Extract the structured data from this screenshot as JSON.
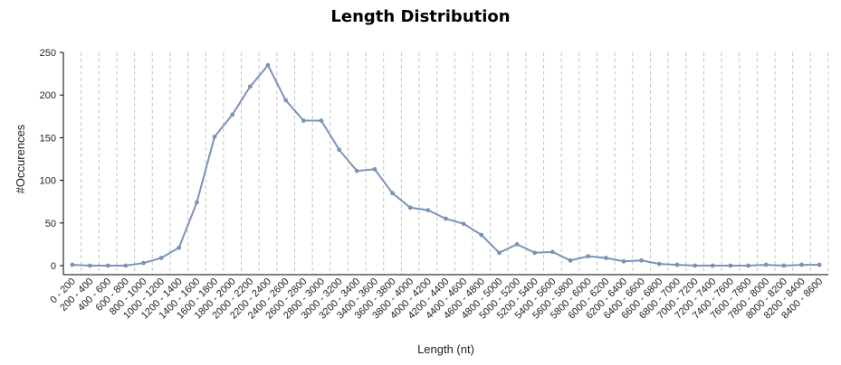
{
  "chart_data": {
    "type": "line",
    "title": "Length Distribution",
    "xlabel": "Length (nt)",
    "ylabel": "#Occurences",
    "ylim": [
      0,
      250
    ],
    "yticks": [
      "0",
      "50",
      "100",
      "150",
      "200",
      "250"
    ],
    "grid": "vertical dashed",
    "color": "#7b93b8",
    "categories": [
      "0 - 200",
      "200 - 400",
      "400 - 600",
      "600 - 800",
      "800 - 1000",
      "1000 - 1200",
      "1200 - 1400",
      "1400 - 1600",
      "1600 - 1800",
      "1800 - 2000",
      "2000 - 2200",
      "2200 - 2400",
      "2400 - 2600",
      "2600 - 2800",
      "2800 - 3000",
      "3000 - 3200",
      "3200 - 3400",
      "3400 - 3600",
      "3600 - 3800",
      "3800 - 4000",
      "4000 - 4200",
      "4200 - 4400",
      "4400 - 4600",
      "4600 - 4800",
      "4800 - 5000",
      "5000 - 5200",
      "5200 - 5400",
      "5400 - 5600",
      "5600 - 5800",
      "5800 - 6000",
      "6000 - 6200",
      "6200 - 6400",
      "6400 - 6600",
      "6600 - 6800",
      "6800 - 7000",
      "7000 - 7200",
      "7200 - 7400",
      "7400 - 7600",
      "7600 - 7800",
      "7800 - 8000",
      "8000 - 8200",
      "8200 - 8400",
      "8400 - 8600"
    ],
    "values": [
      1,
      0,
      0,
      0,
      3,
      9,
      21,
      74,
      151,
      177,
      210,
      235,
      194,
      170,
      170,
      136,
      111,
      113,
      85,
      68,
      65,
      55,
      49,
      36,
      15,
      25,
      15,
      16,
      6,
      11,
      9,
      5,
      6,
      2,
      1,
      0,
      0,
      0,
      0,
      1,
      0,
      1,
      1
    ]
  }
}
